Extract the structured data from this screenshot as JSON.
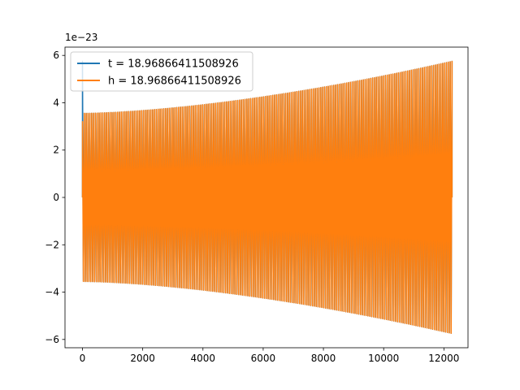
{
  "chart_data": {
    "type": "line",
    "title": "",
    "xlabel": "",
    "ylabel": "",
    "y_offset_text": "1e−23",
    "xlim": [
      -580,
      12800
    ],
    "ylim": [
      -6.35,
      6.35
    ],
    "x_ticks": [
      0,
      2000,
      4000,
      6000,
      8000,
      10000,
      12000
    ],
    "x_tick_labels": [
      "0",
      "2000",
      "4000",
      "6000",
      "8000",
      "10000",
      "12000"
    ],
    "y_ticks": [
      -6,
      -4,
      -2,
      0,
      2,
      4,
      6
    ],
    "y_tick_labels": [
      "−6",
      "−4",
      "−2",
      "0",
      "2",
      "4",
      "6"
    ],
    "grid": false,
    "legend_position": "upper-left",
    "series": [
      {
        "name": "t = 18.96866411508926",
        "color": "#1f77b4",
        "kind": "oscillating-chirp",
        "x_start": 0,
        "x_end": 12270,
        "envelope_start": 3.55,
        "envelope_end": 5.75,
        "edge_spike_start": 5.75,
        "edge_spike_end": 5.75,
        "oscillation_count": 200
      },
      {
        "name": "h = 18.96866411508926",
        "color": "#ff7f0e",
        "kind": "oscillating-chirp",
        "x_start": 0,
        "x_end": 12270,
        "envelope_start": 3.55,
        "envelope_end": 5.75,
        "edge_spike_start": 3.2,
        "edge_spike_end": 1.9,
        "oscillation_count": 200
      }
    ]
  }
}
